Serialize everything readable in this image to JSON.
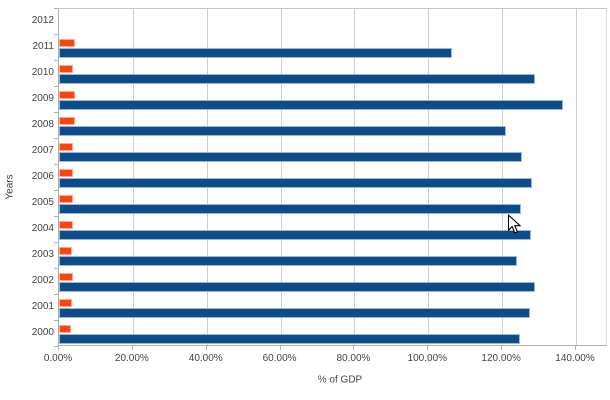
{
  "chart_data": {
    "type": "bar",
    "orientation": "horizontal",
    "title": "",
    "xlabel": "% of GDP",
    "ylabel": "Years",
    "categories": [
      "2000",
      "2001",
      "2002",
      "2003",
      "2004",
      "2005",
      "2006",
      "2007",
      "2008",
      "2009",
      "2010",
      "2011",
      "2012"
    ],
    "series": [
      {
        "name": "blue-series",
        "color": "#0c4c8a",
        "values": [
          124.8,
          127.5,
          128.8,
          124.0,
          127.9,
          125.1,
          128.2,
          125.3,
          121.0,
          136.5,
          128.8,
          106.3,
          null
        ]
      },
      {
        "name": "orange-series",
        "color": "#ff420e",
        "values": [
          3.2,
          3.5,
          3.9,
          3.4,
          3.7,
          3.7,
          3.7,
          3.9,
          4.2,
          4.2,
          3.9,
          4.2,
          null
        ]
      }
    ],
    "x_ticks": [
      "0.00%",
      "20.00%",
      "40.00%",
      "60.00%",
      "80.00%",
      "100.00%",
      "120.00%",
      "140.00%"
    ],
    "x_tick_values": [
      0,
      20,
      40,
      60,
      80,
      100,
      120,
      140
    ],
    "xlim": [
      0,
      148.6
    ],
    "grid": "vertical-only",
    "legend": "none",
    "plot_background": "#ffffff"
  }
}
